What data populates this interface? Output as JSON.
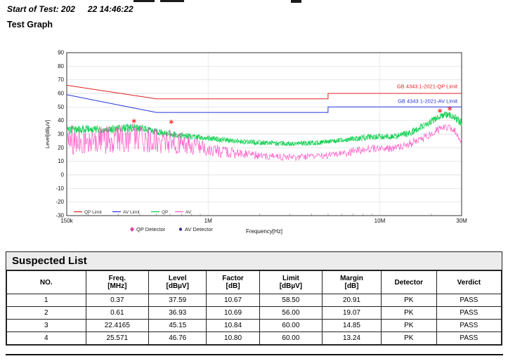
{
  "page": {
    "start_of_test_prefix": "Start of Test: 202",
    "start_of_test_time": "22 14:46:22",
    "graph_title": "Test Graph"
  },
  "chart": {
    "type": "line",
    "x_axis": {
      "label": "Frequency[Hz]",
      "scale": "log",
      "min_mhz": 0.15,
      "max_mhz": 30,
      "ticks": [
        {
          "label": "150k",
          "mhz": 0.15
        },
        {
          "label": "1M",
          "mhz": 1
        },
        {
          "label": "10M",
          "mhz": 10
        },
        {
          "label": "30M",
          "mhz": 30
        }
      ]
    },
    "y_axis": {
      "label": "Level[dBµV]",
      "min": -30,
      "max": 90,
      "step": 10
    },
    "limits": [
      {
        "name": "GB 4343.1-2021-QP Limit",
        "color": "#e02020",
        "label_level": 64,
        "points": [
          [
            0.15,
            66
          ],
          [
            0.5,
            56
          ],
          [
            5,
            56
          ],
          [
            5,
            60
          ],
          [
            30,
            60
          ]
        ]
      },
      {
        "name": "GB 4343 1-2021-AV Limit",
        "color": "#2233dd",
        "label_level": 53,
        "points": [
          [
            0.15,
            59
          ],
          [
            0.5,
            46
          ],
          [
            5,
            46
          ],
          [
            5,
            50
          ],
          [
            30,
            50
          ]
        ]
      }
    ],
    "traces": [
      {
        "name": "QP",
        "color": "#00cc44",
        "samples": 700,
        "passes": 2,
        "points": [
          [
            0.15,
            33,
            3
          ],
          [
            0.2,
            34,
            3
          ],
          [
            0.25,
            33,
            3
          ],
          [
            0.3,
            34,
            3
          ],
          [
            0.37,
            35,
            3
          ],
          [
            0.45,
            33,
            2.5
          ],
          [
            0.55,
            31,
            2.5
          ],
          [
            0.7,
            29,
            2.2
          ],
          [
            0.9,
            27.5,
            2
          ],
          [
            1.2,
            26,
            2
          ],
          [
            1.6,
            24.5,
            1.8
          ],
          [
            2.2,
            23.5,
            1.8
          ],
          [
            3,
            23,
            1.8
          ],
          [
            4,
            23.5,
            1.8
          ],
          [
            5,
            24.5,
            1.8
          ],
          [
            6.5,
            26,
            2
          ],
          [
            8,
            27.5,
            2.2
          ],
          [
            10,
            28.5,
            2.2
          ],
          [
            12,
            28,
            2.2
          ],
          [
            15,
            31,
            2.5
          ],
          [
            18,
            36,
            2.5
          ],
          [
            21,
            41,
            2.5
          ],
          [
            23,
            43.5,
            2.5
          ],
          [
            25,
            44.5,
            2.5
          ],
          [
            26.5,
            43,
            2.5
          ],
          [
            28,
            41,
            3
          ],
          [
            30,
            38,
            3
          ]
        ]
      },
      {
        "name": "AV",
        "color": "#ff4fc4",
        "samples": 700,
        "passes": 1,
        "points": [
          [
            0.15,
            26,
            11
          ],
          [
            0.2,
            26,
            11
          ],
          [
            0.3,
            26,
            11
          ],
          [
            0.37,
            27,
            11
          ],
          [
            0.45,
            26,
            10
          ],
          [
            0.55,
            25,
            10
          ],
          [
            0.7,
            23,
            8
          ],
          [
            0.9,
            20,
            6
          ],
          [
            1.2,
            17,
            4.5
          ],
          [
            1.6,
            15,
            3.5
          ],
          [
            2.2,
            14,
            2.8
          ],
          [
            3,
            13,
            2.5
          ],
          [
            4,
            13.5,
            2.5
          ],
          [
            5,
            14.5,
            2.5
          ],
          [
            6.5,
            16.5,
            2.8
          ],
          [
            8,
            18.5,
            3
          ],
          [
            10,
            20,
            2.5
          ],
          [
            12,
            19.5,
            2.5
          ],
          [
            15,
            23,
            3
          ],
          [
            18,
            27.5,
            3.2
          ],
          [
            21,
            32,
            3.2
          ],
          [
            23,
            34.5,
            3.2
          ],
          [
            25,
            36,
            3
          ],
          [
            26.5,
            34.5,
            3
          ],
          [
            28,
            31,
            3
          ],
          [
            30,
            24,
            3
          ]
        ]
      }
    ],
    "markers": {
      "symbol": "asterisk",
      "color": "#ff1a1a",
      "points": [
        [
          0.37,
          37.59
        ],
        [
          0.61,
          36.93
        ],
        [
          22.4165,
          45.15
        ],
        [
          25.571,
          46.76
        ]
      ]
    },
    "plot_legend": [
      {
        "label": "QP Limit",
        "color": "#e02020"
      },
      {
        "label": "AV Limit",
        "color": "#2233dd"
      },
      {
        "label": "QP",
        "color": "#00cc44"
      },
      {
        "label": "AV",
        "color": "#ff4fc4"
      }
    ],
    "detector_legend": [
      {
        "label": "QP Detector",
        "marker": "diamond",
        "color": "#e040a8"
      },
      {
        "label": "AV Detector",
        "marker": "dot",
        "color": "#333399"
      }
    ]
  },
  "suspected_list": {
    "title": "Suspected List",
    "columns": [
      {
        "label": "NO.",
        "sub": ""
      },
      {
        "label": "Freq.",
        "sub": "[MHz]"
      },
      {
        "label": "Level",
        "sub": "[dBµV]"
      },
      {
        "label": "Factor",
        "sub": "[dB]"
      },
      {
        "label": "Limit",
        "sub": "[dBµV]"
      },
      {
        "label": "Margin",
        "sub": "[dB]"
      },
      {
        "label": "Detector",
        "sub": ""
      },
      {
        "label": "Verdict",
        "sub": ""
      }
    ],
    "rows": [
      [
        "1",
        "0.37",
        "37.59",
        "10.67",
        "58.50",
        "20.91",
        "PK",
        "PASS"
      ],
      [
        "2",
        "0.61",
        "36.93",
        "10.69",
        "56.00",
        "19.07",
        "PK",
        "PASS"
      ],
      [
        "3",
        "22.4165",
        "45.15",
        "10.84",
        "60.00",
        "14.85",
        "PK",
        "PASS"
      ],
      [
        "4",
        "25.571",
        "46.76",
        "10.80",
        "60.00",
        "13.24",
        "PK",
        "PASS"
      ]
    ]
  }
}
